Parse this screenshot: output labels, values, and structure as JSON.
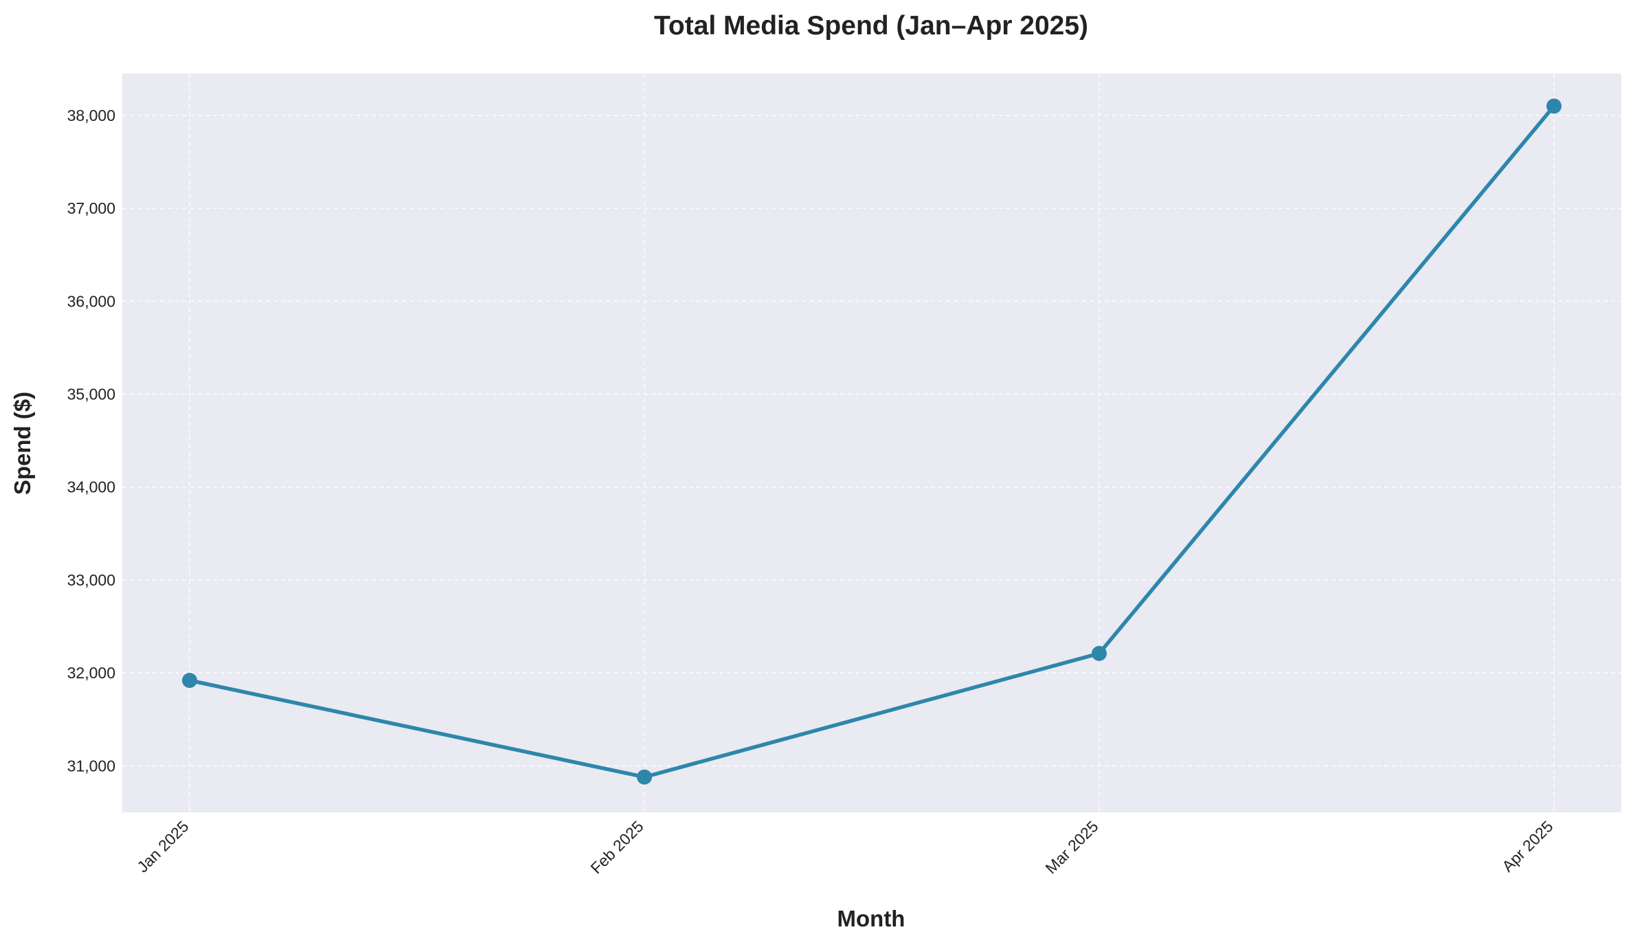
{
  "chart_data": {
    "type": "line",
    "title": "Total Media Spend (Jan–Apr 2025)",
    "xlabel": "Month",
    "ylabel": "Spend ($)",
    "categories": [
      "Jan 2025",
      "Feb 2025",
      "Mar 2025",
      "Apr 2025"
    ],
    "series": [
      {
        "values": [
          31920,
          30880,
          32210,
          38100
        ]
      }
    ],
    "ylim": [
      30500,
      38450
    ],
    "yticks": [
      31000,
      32000,
      33000,
      34000,
      35000,
      36000,
      37000,
      38000
    ],
    "ytick_labels": [
      "31,000",
      "32,000",
      "33,000",
      "34,000",
      "35,000",
      "36,000",
      "37,000",
      "38,000"
    ],
    "grid": true,
    "colors": {
      "line": "#2e86ab",
      "plot_background": "#e9eaf2",
      "grid": "#ffffff"
    }
  }
}
